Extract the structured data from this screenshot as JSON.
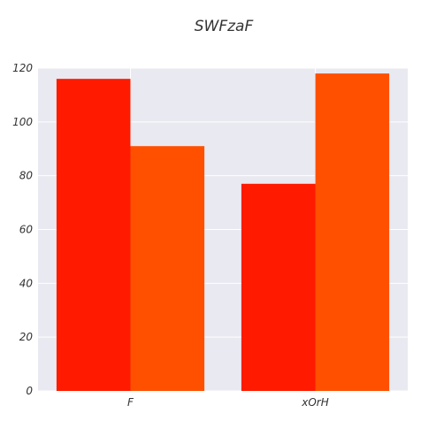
{
  "chart_data": {
    "type": "bar",
    "title": "SWFzaF",
    "xlabel": "",
    "ylabel": "",
    "categories": [
      "F",
      "xOrH"
    ],
    "series": [
      {
        "values": [
          116,
          77
        ],
        "color": "#ff1a00"
      },
      {
        "values": [
          91,
          118
        ],
        "color": "#ff5000"
      }
    ],
    "ylim": [
      0,
      120
    ],
    "yticks": [
      0,
      20,
      40,
      60,
      80,
      100,
      120
    ],
    "grid": true,
    "legend": "none",
    "colors": {
      "plot_background": "#e9e9f1",
      "grid": "#ffffff"
    }
  }
}
